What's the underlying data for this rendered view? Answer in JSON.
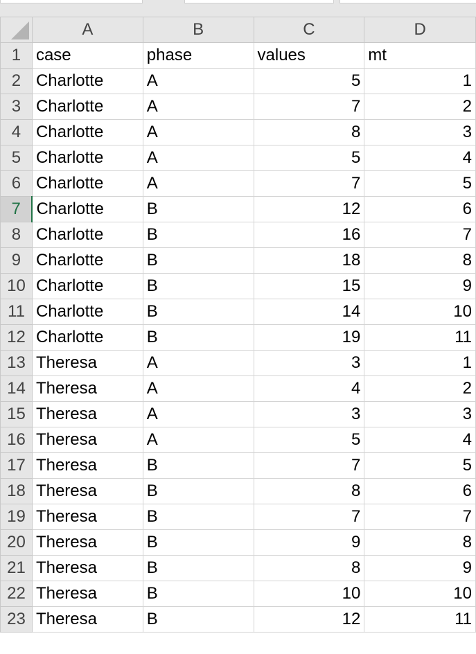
{
  "sheet": {
    "columns": [
      "A",
      "B",
      "C",
      "D"
    ],
    "rows": [
      {
        "num": "1",
        "case": "case",
        "phase": "phase",
        "values": "values",
        "mt": "mt"
      },
      {
        "num": "2",
        "case": "Charlotte",
        "phase": "A",
        "values": "5",
        "mt": "1"
      },
      {
        "num": "3",
        "case": "Charlotte",
        "phase": "A",
        "values": "7",
        "mt": "2"
      },
      {
        "num": "4",
        "case": "Charlotte",
        "phase": "A",
        "values": "8",
        "mt": "3"
      },
      {
        "num": "5",
        "case": "Charlotte",
        "phase": "A",
        "values": "5",
        "mt": "4"
      },
      {
        "num": "6",
        "case": "Charlotte",
        "phase": "A",
        "values": "7",
        "mt": "5"
      },
      {
        "num": "7",
        "case": "Charlotte",
        "phase": "B",
        "values": "12",
        "mt": "6"
      },
      {
        "num": "8",
        "case": "Charlotte",
        "phase": "B",
        "values": "16",
        "mt": "7"
      },
      {
        "num": "9",
        "case": "Charlotte",
        "phase": "B",
        "values": "18",
        "mt": "8"
      },
      {
        "num": "10",
        "case": "Charlotte",
        "phase": "B",
        "values": "15",
        "mt": "9"
      },
      {
        "num": "11",
        "case": "Charlotte",
        "phase": "B",
        "values": "14",
        "mt": "10"
      },
      {
        "num": "12",
        "case": "Charlotte",
        "phase": "B",
        "values": "19",
        "mt": "11"
      },
      {
        "num": "13",
        "case": "Theresa",
        "phase": "A",
        "values": "3",
        "mt": "1"
      },
      {
        "num": "14",
        "case": "Theresa",
        "phase": "A",
        "values": "4",
        "mt": "2"
      },
      {
        "num": "15",
        "case": "Theresa",
        "phase": "A",
        "values": "3",
        "mt": "3"
      },
      {
        "num": "16",
        "case": "Theresa",
        "phase": "A",
        "values": "5",
        "mt": "4"
      },
      {
        "num": "17",
        "case": "Theresa",
        "phase": "B",
        "values": "7",
        "mt": "5"
      },
      {
        "num": "18",
        "case": "Theresa",
        "phase": "B",
        "values": "8",
        "mt": "6"
      },
      {
        "num": "19",
        "case": "Theresa",
        "phase": "B",
        "values": "7",
        "mt": "7"
      },
      {
        "num": "20",
        "case": "Theresa",
        "phase": "B",
        "values": "9",
        "mt": "8"
      },
      {
        "num": "21",
        "case": "Theresa",
        "phase": "B",
        "values": "8",
        "mt": "9"
      },
      {
        "num": "22",
        "case": "Theresa",
        "phase": "B",
        "values": "10",
        "mt": "10"
      },
      {
        "num": "23",
        "case": "Theresa",
        "phase": "B",
        "values": "12",
        "mt": "11"
      }
    ],
    "active_row": "7"
  },
  "colors": {
    "header_bg": "#e6e6e6",
    "grid_line": "#d4d4d4",
    "active_accent": "#217346"
  }
}
